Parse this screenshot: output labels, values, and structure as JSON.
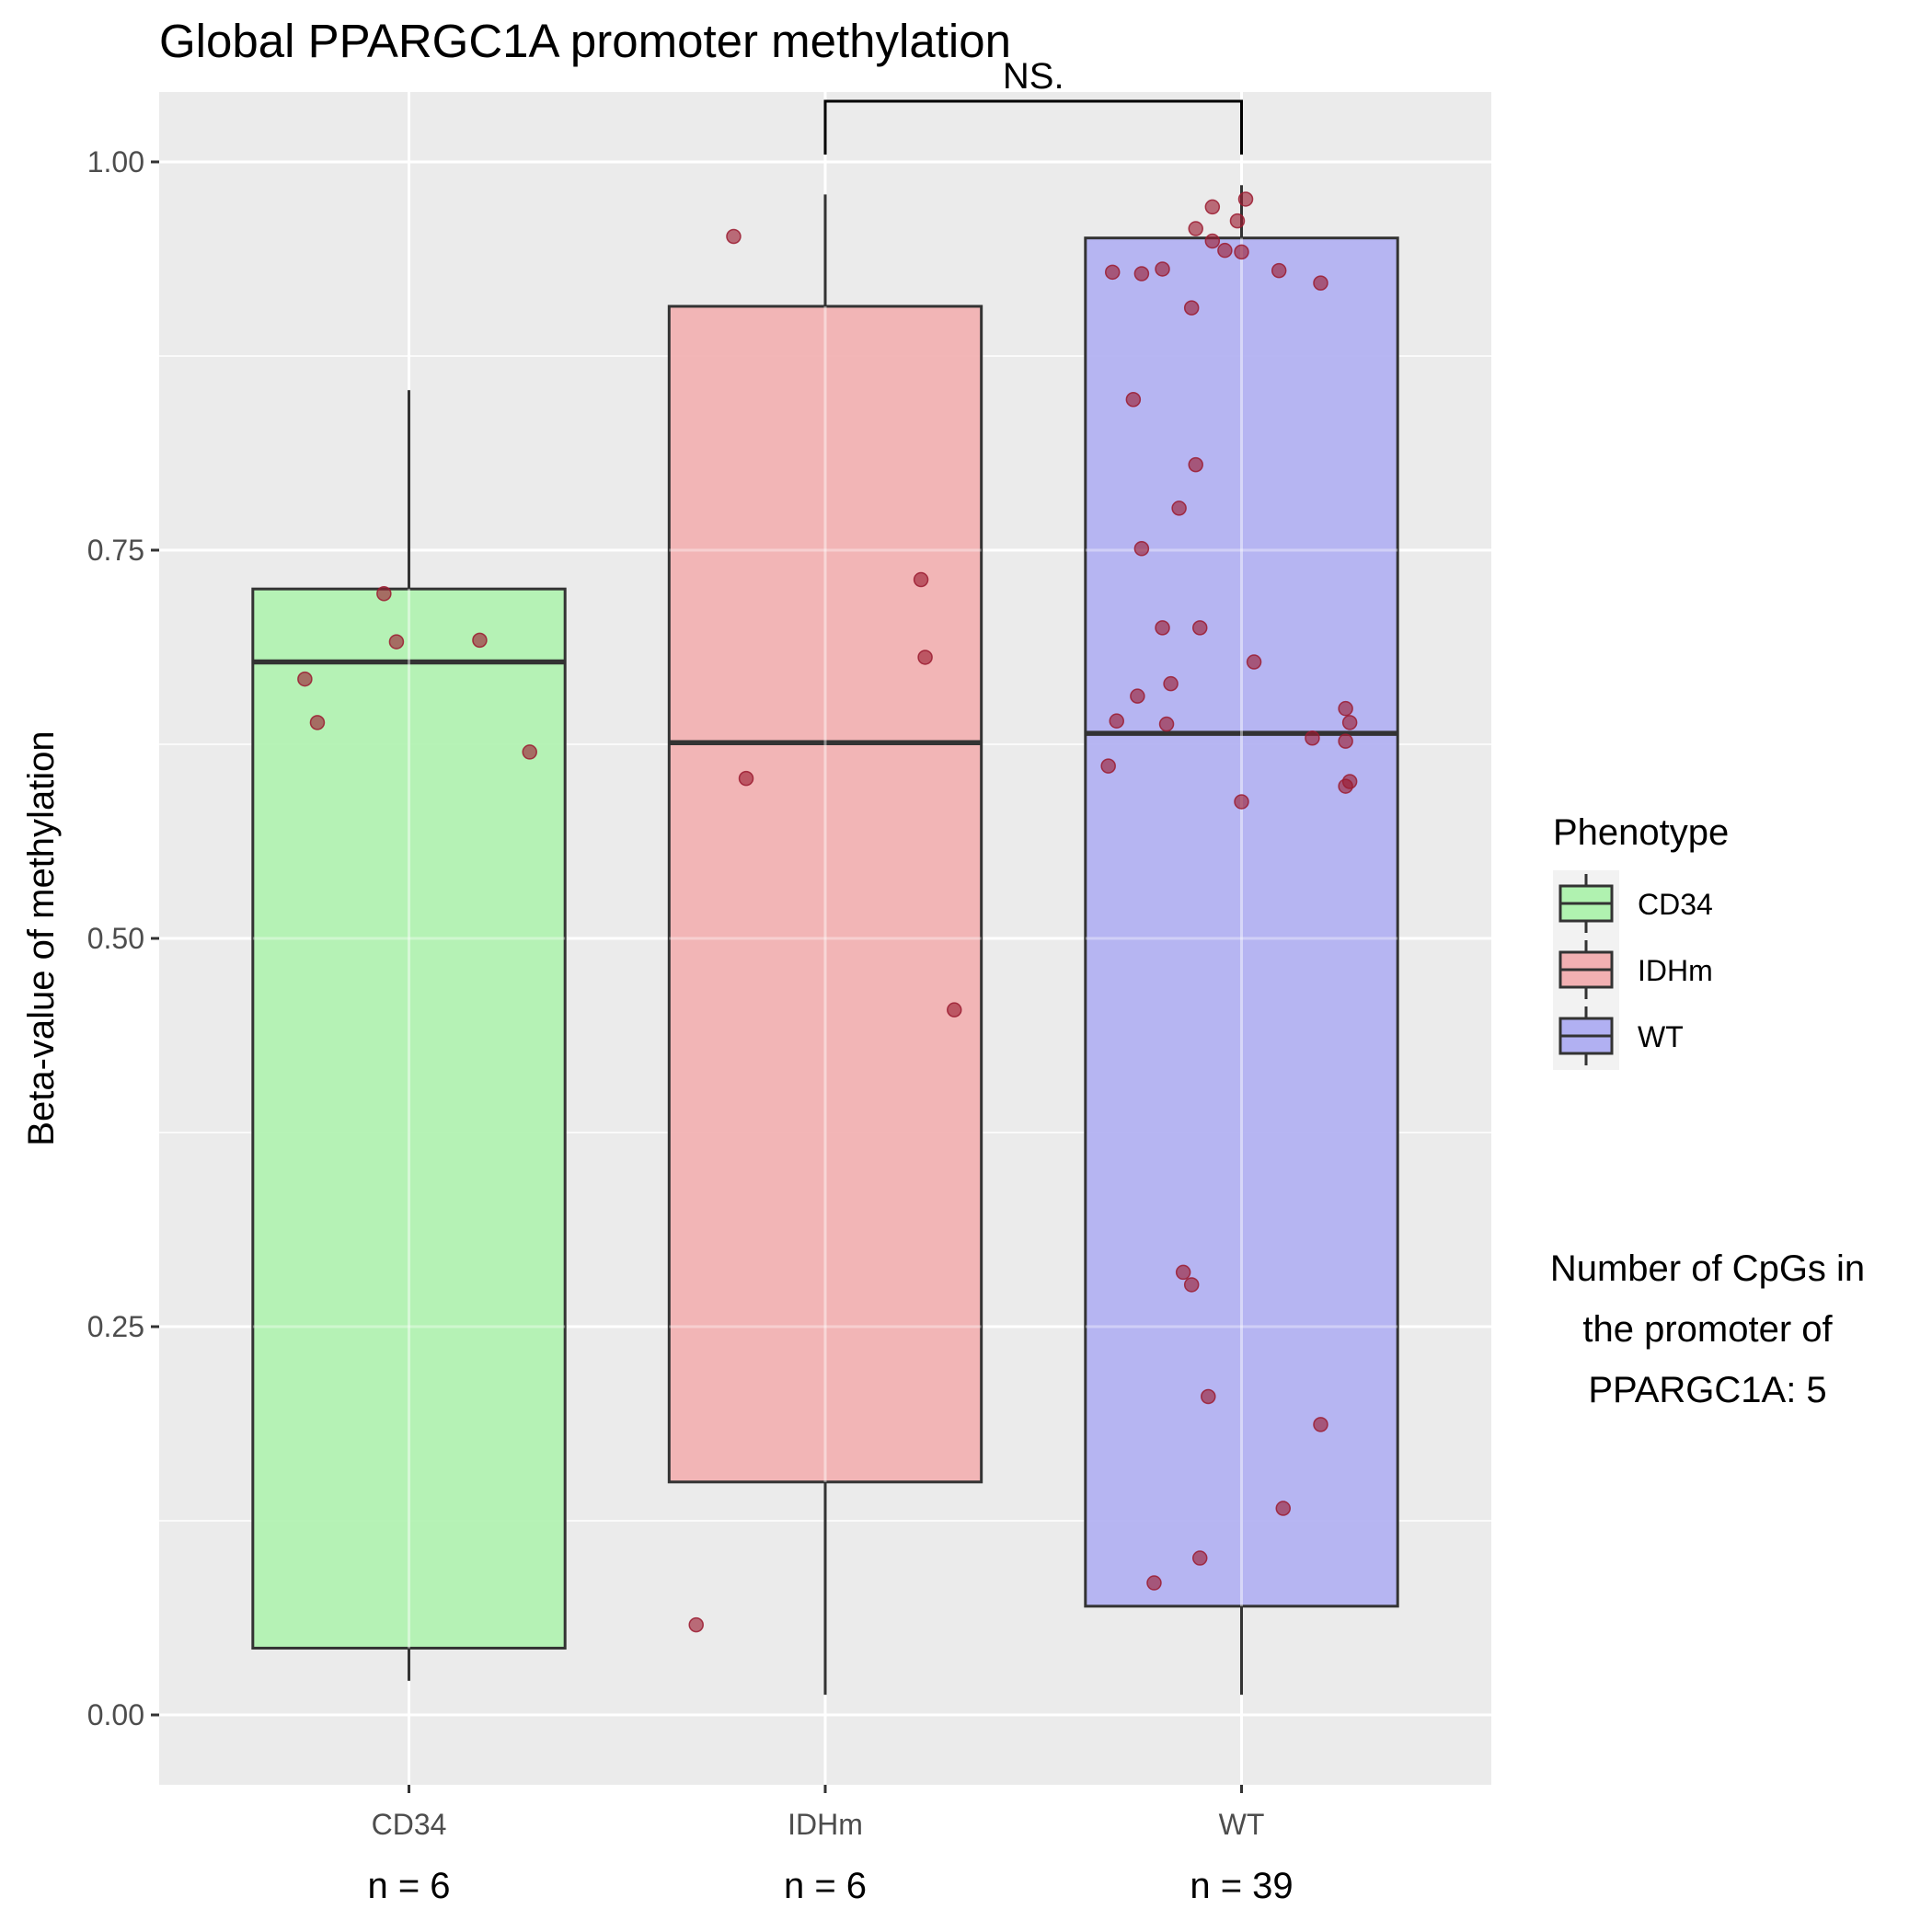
{
  "chart_data": {
    "type": "box",
    "title": "Global PPARGC1A promoter methylation",
    "xlabel": "",
    "ylabel": "Beta-value of methylation",
    "ylim": [
      -0.045,
      1.045
    ],
    "yticks": [
      "0.00",
      "0.25",
      "0.50",
      "0.75",
      "1.00"
    ],
    "ytick_values": [
      0,
      0.25,
      0.5,
      0.75,
      1.0
    ],
    "grid": true,
    "categories": [
      "CD34",
      "IDHm",
      "WT"
    ],
    "n_labels": [
      "n = 6",
      "n = 6",
      "n = 39"
    ],
    "colors": {
      "CD34": "#b0f2b0",
      "IDHm": "#f2b0b2",
      "WT": "#b1b0f2",
      "points": "#9b1b30",
      "panel": "#ebebeb"
    },
    "boxes": [
      {
        "name": "CD34",
        "lower_whisker": 0.022,
        "q1": 0.043,
        "median": 0.678,
        "q3": 0.725,
        "upper_whisker": 0.853
      },
      {
        "name": "IDHm",
        "lower_whisker": 0.013,
        "q1": 0.15,
        "median": 0.626,
        "q3": 0.907,
        "upper_whisker": 0.979
      },
      {
        "name": "WT",
        "lower_whisker": 0.013,
        "q1": 0.07,
        "median": 0.632,
        "q3": 0.951,
        "upper_whisker": 0.985
      }
    ],
    "points": [
      {
        "group": "CD34",
        "values": [
          0.722,
          0.691,
          0.692,
          0.667,
          0.639,
          0.62
        ]
      },
      {
        "group": "IDHm",
        "values": [
          0.952,
          0.731,
          0.681,
          0.603,
          0.454,
          0.058
        ]
      },
      {
        "group": "WT",
        "values": [
          0.976,
          0.971,
          0.962,
          0.957,
          0.949,
          0.943,
          0.942,
          0.931,
          0.93,
          0.929,
          0.928,
          0.922,
          0.906,
          0.847,
          0.805,
          0.777,
          0.751,
          0.7,
          0.7,
          0.678,
          0.664,
          0.656,
          0.648,
          0.64,
          0.639,
          0.638,
          0.629,
          0.627,
          0.611,
          0.601,
          0.598,
          0.588,
          0.285,
          0.277,
          0.205,
          0.187,
          0.133,
          0.101,
          0.085
        ]
      }
    ],
    "point_offsets": [
      [
        -0.06,
        -0.03,
        0.17,
        -0.25,
        -0.22,
        0.29
      ],
      [
        -0.22,
        0.23,
        0.24,
        -0.19,
        0.31,
        -0.31
      ],
      [
        0.01,
        -0.07,
        -0.01,
        -0.11,
        -0.07,
        -0.04,
        0.0,
        -0.19,
        0.09,
        -0.31,
        -0.24,
        0.19,
        -0.12,
        -0.26,
        -0.11,
        -0.15,
        -0.24,
        -0.19,
        -0.1,
        0.03,
        -0.17,
        -0.25,
        0.25,
        -0.3,
        0.26,
        -0.18,
        0.17,
        0.25,
        -0.32,
        0.26,
        0.25,
        0.0,
        -0.14,
        -0.12,
        -0.08,
        0.19,
        0.1,
        -0.1,
        -0.21
      ]
    ],
    "comparison": {
      "from": "IDHm",
      "to": "WT",
      "label": "NS."
    },
    "legend": {
      "title": "Phenotype",
      "placement": "right",
      "entries": [
        "CD34",
        "IDHm",
        "WT"
      ]
    },
    "annotation": [
      "Number of CpGs in",
      "the promoter of",
      "PPARGC1A: 5"
    ]
  }
}
